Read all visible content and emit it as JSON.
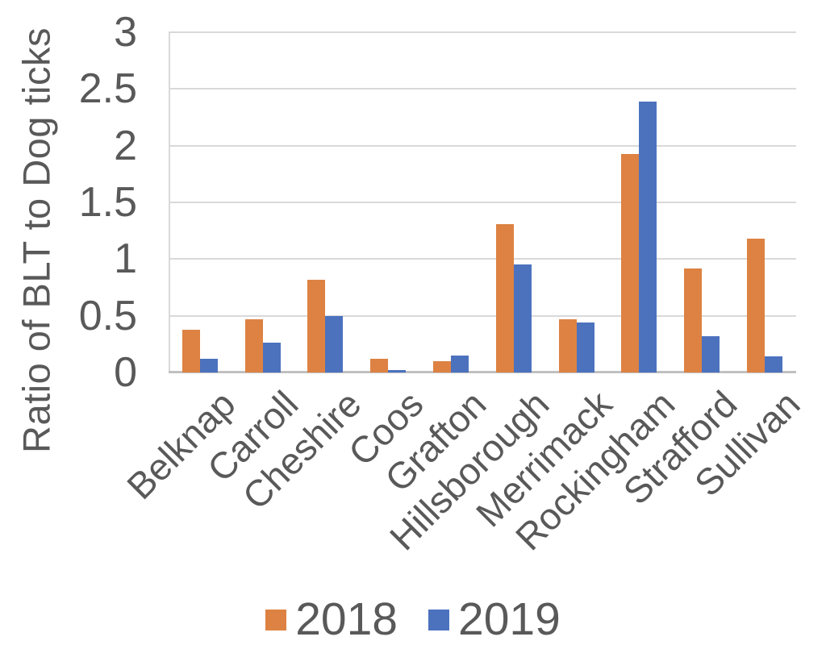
{
  "chart_data": {
    "type": "bar",
    "title": "",
    "ylabel": "Ratio of BLT to Dog ticks",
    "xlabel": "",
    "ylim": [
      0,
      3
    ],
    "ytick_step": 0.5,
    "ytick_labels": [
      "3",
      "2.5",
      "2",
      "1.5",
      "1",
      "0.5",
      "0"
    ],
    "grid": true,
    "legend_position": "bottom",
    "categories": [
      "Belknap",
      "Carroll",
      "Cheshire",
      "Coos",
      "Grafton",
      "Hillsborough",
      "Merrimack",
      "Rockingham",
      "Strafford",
      "Sullivan"
    ],
    "series": [
      {
        "name": "2018",
        "color": "#DD8243",
        "values": [
          0.38,
          0.47,
          0.82,
          0.12,
          0.1,
          1.31,
          0.47,
          1.93,
          0.92,
          1.18
        ]
      },
      {
        "name": "2019",
        "color": "#4C72BE",
        "values": [
          0.12,
          0.26,
          0.5,
          0.02,
          0.15,
          0.95,
          0.44,
          2.39,
          0.32,
          0.14
        ]
      }
    ]
  },
  "colors": {
    "text": "#595959",
    "gridline": "#D9D9D9",
    "axis_line": "#C0C0C0",
    "background": "#FFFFFF"
  }
}
